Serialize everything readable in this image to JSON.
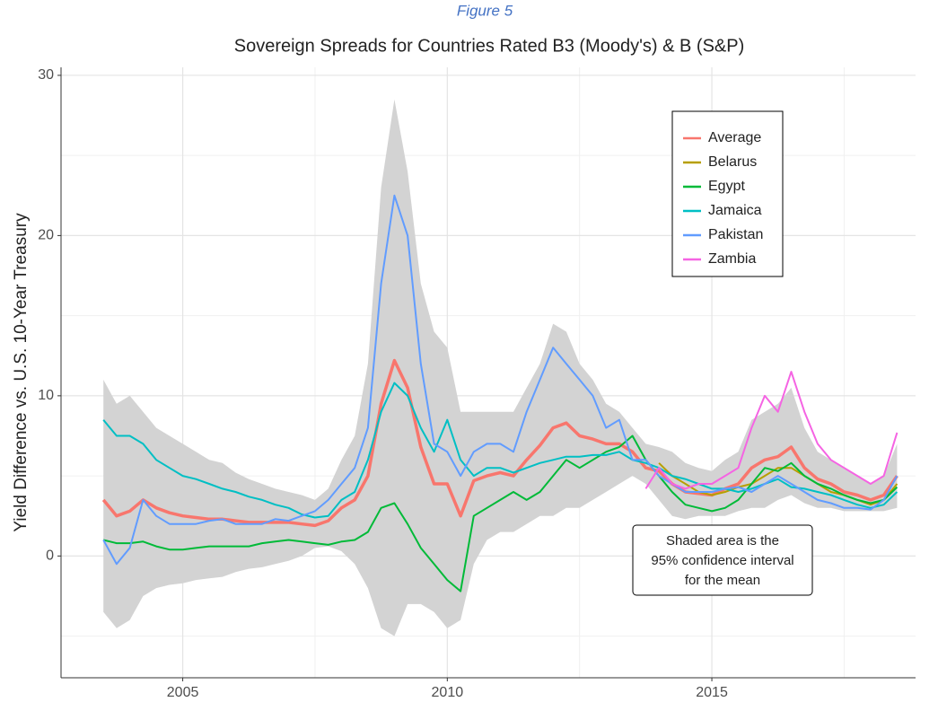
{
  "chart_data": {
    "type": "line",
    "figure_label": "Figure 5",
    "title": "Sovereign Spreads for Countries Rated B3 (Moody's) & B (S&P)",
    "y_label": "Yield Difference vs. U.S. 10-Year Treasury",
    "annotation": [
      "Shaded area is the",
      "95% confidence interval",
      "for the mean"
    ],
    "xlim": [
      2002.7,
      2018.85
    ],
    "ylim": [
      -7.6,
      30.5
    ],
    "xticks": [
      2005,
      2010,
      2015
    ],
    "yticks": [
      0,
      10,
      20,
      30
    ],
    "x_minor_ticks": [
      2007.5,
      2012.5,
      2017.5
    ],
    "y_minor_ticks": [
      -5,
      5,
      15,
      25
    ],
    "grid": true,
    "legend_position": "top-right",
    "x": [
      2003.5,
      2003.75,
      2004,
      2004.25,
      2004.5,
      2004.75,
      2005,
      2005.25,
      2005.5,
      2005.75,
      2006,
      2006.25,
      2006.5,
      2006.75,
      2007,
      2007.25,
      2007.5,
      2007.75,
      2008,
      2008.25,
      2008.5,
      2008.75,
      2009,
      2009.25,
      2009.5,
      2009.75,
      2010,
      2010.25,
      2010.5,
      2010.75,
      2011,
      2011.25,
      2011.5,
      2011.75,
      2012,
      2012.25,
      2012.5,
      2012.75,
      2013,
      2013.25,
      2013.5,
      2013.75,
      2014,
      2014.25,
      2014.5,
      2014.75,
      2015,
      2015.25,
      2015.5,
      2015.75,
      2016,
      2016.25,
      2016.5,
      2016.75,
      2017,
      2017.25,
      2017.5,
      2017.75,
      2018,
      2018.25,
      2018.5
    ],
    "band": {
      "color": "#d3d3d3",
      "lower": [
        -3.5,
        -4.5,
        -4,
        -2.5,
        -2,
        -1.8,
        -1.7,
        -1.5,
        -1.4,
        -1.3,
        -1,
        -0.8,
        -0.7,
        -0.5,
        -0.3,
        0,
        0.5,
        0.6,
        0.3,
        -0.5,
        -2,
        -4.5,
        -5,
        -3,
        -3,
        -3.5,
        -4.5,
        -4,
        -0.5,
        1,
        1.5,
        1.5,
        2,
        2.5,
        2.5,
        3,
        3,
        3.5,
        4,
        4.5,
        5,
        4.5,
        3.5,
        2.5,
        2.3,
        2.5,
        2.5,
        2.5,
        2.8,
        3,
        3,
        3.5,
        3.8,
        3.3,
        3,
        3,
        2.8,
        2.8,
        2.8,
        2.8,
        3
      ],
      "upper": [
        11,
        9.5,
        10,
        9,
        8,
        7.5,
        7,
        6.5,
        6,
        5.8,
        5.2,
        4.8,
        4.5,
        4.2,
        4,
        3.8,
        3.5,
        4.2,
        6,
        7.5,
        12,
        23,
        28.5,
        24,
        17,
        14,
        13,
        9,
        9,
        9,
        9,
        9,
        10.5,
        12,
        14.5,
        14,
        12,
        11,
        9.5,
        9,
        8,
        7,
        6.8,
        6.5,
        5.8,
        5.5,
        5.3,
        6,
        6.5,
        8.5,
        9,
        9.5,
        10.5,
        8,
        6.5,
        6,
        5.5,
        5,
        4.5,
        5,
        7
      ]
    },
    "series": [
      {
        "name": "Average",
        "color": "#F8766D",
        "width": 3.5,
        "values": [
          3.5,
          2.5,
          2.8,
          3.5,
          3,
          2.7,
          2.5,
          2.4,
          2.3,
          2.3,
          2.2,
          2.1,
          2.1,
          2.1,
          2.1,
          2,
          1.9,
          2.2,
          3,
          3.5,
          5,
          9.5,
          12.2,
          10.5,
          6.8,
          4.5,
          4.5,
          2.5,
          4.7,
          5,
          5.2,
          5,
          6,
          6.9,
          8,
          8.3,
          7.5,
          7.3,
          7,
          7,
          6.5,
          5.5,
          5.3,
          4.5,
          4,
          3.9,
          3.8,
          4.2,
          4.5,
          5.5,
          6,
          6.2,
          6.8,
          5.5,
          4.8,
          4.5,
          4,
          3.8,
          3.5,
          3.8,
          5
        ]
      },
      {
        "name": "Belarus",
        "color": "#B79F00",
        "width": 2,
        "values": [
          null,
          null,
          null,
          null,
          null,
          null,
          null,
          null,
          null,
          null,
          null,
          null,
          null,
          null,
          null,
          null,
          null,
          null,
          null,
          null,
          null,
          null,
          null,
          null,
          null,
          null,
          null,
          null,
          null,
          null,
          null,
          null,
          null,
          null,
          null,
          null,
          null,
          null,
          null,
          null,
          null,
          null,
          5.8,
          5,
          4.5,
          4,
          3.8,
          4,
          4.3,
          4.5,
          5,
          5.5,
          5.5,
          5,
          4.5,
          4,
          3.8,
          3.5,
          3.2,
          3.5,
          4.5
        ]
      },
      {
        "name": "Egypt",
        "color": "#00BA38",
        "width": 2,
        "values": [
          1,
          0.8,
          0.8,
          0.9,
          0.6,
          0.4,
          0.4,
          0.5,
          0.6,
          0.6,
          0.6,
          0.6,
          0.8,
          0.9,
          1,
          0.9,
          0.8,
          0.7,
          0.9,
          1,
          1.5,
          3,
          3.3,
          2,
          0.5,
          -0.5,
          -1.5,
          -2.2,
          2.5,
          3,
          3.5,
          4,
          3.5,
          4,
          5,
          6,
          5.5,
          6,
          6.5,
          6.8,
          7.5,
          6,
          5,
          4,
          3.2,
          3,
          2.8,
          3,
          3.5,
          4.5,
          5.5,
          5.3,
          5.8,
          5,
          4.5,
          4.2,
          3.8,
          3.5,
          3.3,
          3.5,
          4.3
        ]
      },
      {
        "name": "Jamaica",
        "color": "#00BFC4",
        "width": 2,
        "values": [
          8.5,
          7.5,
          7.5,
          7,
          6,
          5.5,
          5,
          4.8,
          4.5,
          4.2,
          4,
          3.7,
          3.5,
          3.2,
          3,
          2.6,
          2.4,
          2.5,
          3.5,
          4,
          6,
          9,
          10.8,
          10,
          8,
          6.5,
          8.5,
          6,
          5,
          5.5,
          5.5,
          5.2,
          5.5,
          5.8,
          6,
          6.2,
          6.2,
          6.3,
          6.3,
          6.5,
          6,
          5.8,
          5.5,
          5,
          4.8,
          4.5,
          4.2,
          4.2,
          4,
          4.2,
          4.5,
          4.8,
          4.3,
          4.2,
          4,
          3.8,
          3.5,
          3.2,
          3,
          3.2,
          4
        ]
      },
      {
        "name": "Pakistan",
        "color": "#619CFF",
        "width": 2,
        "values": [
          1,
          -0.5,
          0.5,
          3.5,
          2.5,
          2,
          2,
          2,
          2.2,
          2.3,
          2,
          2,
          2,
          2.3,
          2.2,
          2.5,
          2.8,
          3.5,
          4.5,
          5.5,
          8,
          17,
          22.5,
          20,
          12,
          7,
          6.5,
          5,
          6.5,
          7,
          7,
          6.5,
          9,
          11,
          13,
          12,
          11,
          10,
          8,
          8.5,
          6,
          6,
          5,
          4.5,
          4,
          4,
          4,
          4.2,
          4.3,
          4,
          4.5,
          5,
          4.5,
          4,
          3.5,
          3.3,
          3,
          3,
          2.9,
          3.5,
          5
        ]
      },
      {
        "name": "Zambia",
        "color": "#F564E3",
        "width": 2,
        "values": [
          null,
          null,
          null,
          null,
          null,
          null,
          null,
          null,
          null,
          null,
          null,
          null,
          null,
          null,
          null,
          null,
          null,
          null,
          null,
          null,
          null,
          null,
          null,
          null,
          null,
          null,
          null,
          null,
          null,
          null,
          null,
          null,
          null,
          null,
          null,
          null,
          null,
          null,
          null,
          null,
          null,
          4.2,
          5.5,
          4.5,
          4.2,
          4.5,
          4.5,
          5,
          5.5,
          8,
          10,
          9,
          11.5,
          9,
          7,
          6,
          5.5,
          5,
          4.5,
          5,
          7.7
        ]
      }
    ]
  }
}
